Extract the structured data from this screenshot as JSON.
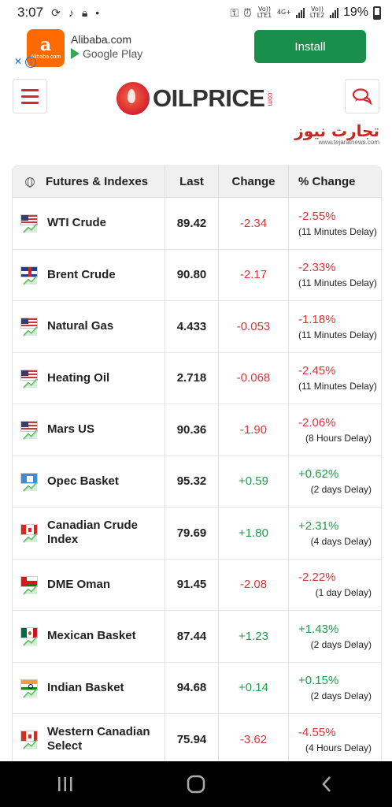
{
  "status_bar": {
    "time": "3:07",
    "network_label_1": "Vo)) LTE1",
    "network_label_2": "4G+",
    "network_label_3": "Vo)) LTE2",
    "battery": "19%"
  },
  "ad": {
    "logo_text": "Alibaba.com",
    "title": "Alibaba.com",
    "store": "Google Play",
    "install_label": "Install",
    "close_label": "✕",
    "info_label": "i"
  },
  "header": {
    "logo_text": "OILPRICE",
    "logo_suffix": ".com",
    "watermark": "تجارت نیوز",
    "watermark_url": "www.tejaratnews.com"
  },
  "table": {
    "columns": [
      "Futures & Indexes",
      "Last",
      "Change",
      "% Change"
    ],
    "rows": [
      {
        "name": "WTI Crude",
        "flag": "us",
        "last": "89.42",
        "change": "-2.34",
        "pct": "-2.55%",
        "delay": "(11 Minutes Delay)",
        "dir": "neg"
      },
      {
        "name": "Brent Crude",
        "flag": "uk",
        "last": "90.80",
        "change": "-2.17",
        "pct": "-2.33%",
        "delay": "(11 Minutes Delay)",
        "dir": "neg"
      },
      {
        "name": "Natural Gas",
        "flag": "us",
        "last": "4.433",
        "change": "-0.053",
        "pct": "-1.18%",
        "delay": "(11 Minutes Delay)",
        "dir": "neg"
      },
      {
        "name": "Heating Oil",
        "flag": "us",
        "last": "2.718",
        "change": "-0.068",
        "pct": "-2.45%",
        "delay": "(11 Minutes Delay)",
        "dir": "neg"
      },
      {
        "name": "Mars US",
        "flag": "us",
        "last": "90.36",
        "change": "-1.90",
        "pct": "-2.06%",
        "delay": "(8 Hours Delay)",
        "dir": "neg"
      },
      {
        "name": "Opec Basket",
        "flag": "opec",
        "last": "95.32",
        "change": "+0.59",
        "pct": "+0.62%",
        "delay": "(2 days Delay)",
        "dir": "pos"
      },
      {
        "name": "Canadian Crude Index",
        "flag": "ca",
        "last": "79.69",
        "change": "+1.80",
        "pct": "+2.31%",
        "delay": "(4 days Delay)",
        "dir": "pos"
      },
      {
        "name": "DME Oman",
        "flag": "om",
        "last": "91.45",
        "change": "-2.08",
        "pct": "-2.22%",
        "delay": "(1 day Delay)",
        "dir": "neg"
      },
      {
        "name": "Mexican Basket",
        "flag": "mx",
        "last": "87.44",
        "change": "+1.23",
        "pct": "+1.43%",
        "delay": "(2 days Delay)",
        "dir": "pos"
      },
      {
        "name": "Indian Basket",
        "flag": "in",
        "last": "94.68",
        "change": "+0.14",
        "pct": "+0.15%",
        "delay": "(2 days Delay)",
        "dir": "pos"
      },
      {
        "name": "Western Canadian Select",
        "flag": "ca",
        "last": "75.94",
        "change": "-3.62",
        "pct": "-4.55%",
        "delay": "(4 Hours Delay)",
        "dir": "neg"
      }
    ]
  },
  "colors": {
    "negative": "#d9373a",
    "positive": "#1f9d49",
    "brand_red": "#d8262f",
    "install_green": "#1a8f4c"
  },
  "icons": [
    "menu-icon",
    "chat-icon",
    "globe-icon",
    "trend-icon",
    "recents-icon",
    "home-icon",
    "back-icon"
  ]
}
